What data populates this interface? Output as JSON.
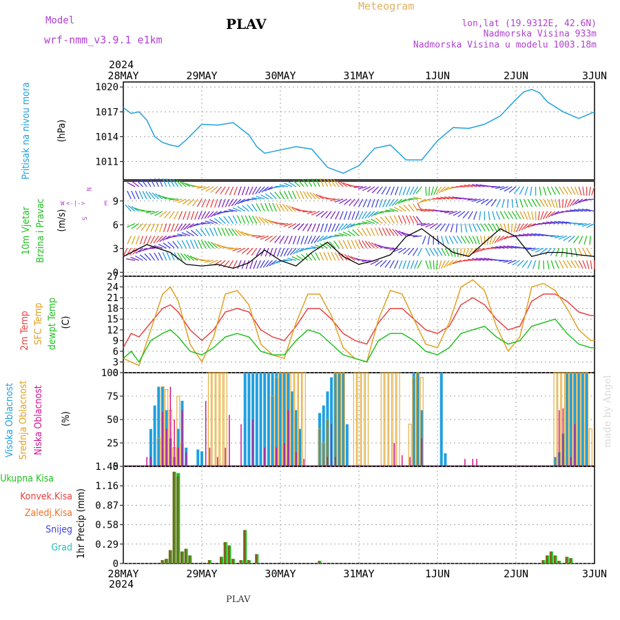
{
  "header": {
    "model_label": "Model",
    "model_value": "wrf-nmm_v3.9.1 e1km",
    "station": "PLAV",
    "title": "Meteogram",
    "lonlat": "lon,lat (19.9312E, 42.6N)",
    "altitude": "Nadmorska Visina 933m",
    "model_altitude": "Nadmorska Visina u modelu 1003.18m",
    "footer_station": "PLAV",
    "credit": "made by Angel",
    "year_label": "2024"
  },
  "colors": {
    "pressure": "#1fa0e0",
    "wind_label": "#20c020",
    "temp2m": "#e84040",
    "sfc": "#e0a020",
    "dewpt": "#20c020",
    "high_cloud": "#1fa0e0",
    "mid_cloud": "#e0a020",
    "low_cloud": "#d01090",
    "ukupna": "#20c020",
    "konvek": "#e84040",
    "zaledj": "#f07020",
    "snijeg": "#4040e0",
    "grad": "#20c0c0",
    "purple": "#b040d0",
    "grid": "#a0a0a0"
  },
  "x_axis": {
    "ticks": [
      "28MAY",
      "29MAY",
      "30MAY",
      "31MAY",
      "1JUN",
      "2JUN",
      "3JUN"
    ]
  },
  "chart_data": [
    {
      "type": "line",
      "panel": "pressure",
      "ylabel_parts": [
        "Pritisak na nivou mora",
        "(hPa)"
      ],
      "yticks": [
        1011,
        1014,
        1017,
        1020
      ],
      "ylim": [
        1008.8,
        1020.6
      ],
      "grid": true,
      "series": [
        {
          "name": "Pritisak na nivou mora",
          "x": [
            0,
            0.1,
            0.2,
            0.3,
            0.4,
            0.5,
            0.6,
            0.7,
            0.8,
            1.0,
            1.2,
            1.4,
            1.6,
            1.7,
            1.8,
            2.0,
            2.2,
            2.4,
            2.6,
            2.8,
            3.0,
            3.2,
            3.4,
            3.6,
            3.8,
            4.0,
            4.2,
            4.4,
            4.6,
            4.8,
            5.0,
            5.1,
            5.2,
            5.3,
            5.4,
            5.6,
            5.8,
            6.0
          ],
          "values": [
            1017.5,
            1016.8,
            1017.0,
            1016.0,
            1014.0,
            1013.3,
            1013.0,
            1012.8,
            1013.6,
            1015.5,
            1015.4,
            1015.7,
            1014.2,
            1012.8,
            1012.0,
            1012.4,
            1012.8,
            1012.5,
            1010.3,
            1009.6,
            1010.5,
            1012.6,
            1013.0,
            1011.2,
            1011.2,
            1013.5,
            1015.1,
            1015.0,
            1015.5,
            1016.5,
            1018.5,
            1019.4,
            1019.7,
            1019.3,
            1018.2,
            1017.0,
            1016.2,
            1017.0
          ]
        }
      ]
    },
    {
      "type": "line",
      "panel": "wind",
      "ylabel_parts": [
        "10m Vjetar",
        "Brzina i Pravac",
        "(m/s)"
      ],
      "compass": {
        "n": "N",
        "s": "S",
        "w": "W",
        "e": "E",
        "arrow": "<-|->"
      },
      "yticks": [
        0,
        3,
        6,
        9
      ],
      "ylim": [
        -0.5,
        11.5
      ],
      "grid": true,
      "series": [
        {
          "name": "brzina",
          "x": [
            0,
            0.3,
            0.6,
            0.8,
            1.0,
            1.2,
            1.4,
            1.6,
            1.8,
            2.0,
            2.2,
            2.4,
            2.6,
            2.8,
            3.0,
            3.2,
            3.4,
            3.6,
            3.8,
            4.0,
            4.2,
            4.4,
            4.6,
            4.8,
            5.0,
            5.2,
            5.4,
            5.6,
            5.8,
            6.0
          ],
          "values": [
            2.0,
            3.5,
            2.5,
            1.0,
            0.8,
            1.0,
            0.5,
            1.2,
            2.8,
            1.5,
            0.8,
            2.5,
            3.8,
            2.0,
            1.0,
            1.5,
            2.2,
            4.5,
            5.5,
            4.0,
            2.5,
            2.0,
            3.8,
            5.5,
            4.5,
            2.0,
            2.5,
            2.5,
            2.2,
            2.0
          ]
        }
      ]
    },
    {
      "type": "line",
      "panel": "temperature",
      "ylabel_parts": [
        "2m Temp",
        "SFC Temp",
        "dewpt Temp",
        "(C)"
      ],
      "yticks": [
        0,
        3,
        6,
        9,
        12,
        15,
        18,
        21,
        24,
        27
      ],
      "ylim": [
        0,
        27
      ],
      "grid": true,
      "series": [
        {
          "name": "2m Temp",
          "x": [
            0,
            0.1,
            0.2,
            0.35,
            0.5,
            0.6,
            0.7,
            0.85,
            1.0,
            1.15,
            1.3,
            1.45,
            1.6,
            1.75,
            1.9,
            2.05,
            2.2,
            2.35,
            2.5,
            2.65,
            2.8,
            2.95,
            3.1,
            3.25,
            3.4,
            3.55,
            3.7,
            3.85,
            4.0,
            4.15,
            4.3,
            4.45,
            4.6,
            4.75,
            4.9,
            5.05,
            5.2,
            5.35,
            5.5,
            5.65,
            5.8,
            5.95,
            6.0
          ],
          "values": [
            7,
            11,
            10,
            14,
            18,
            19,
            17,
            12,
            9,
            12,
            17,
            18,
            17,
            12,
            10,
            9,
            13,
            18,
            18,
            15,
            11,
            9,
            8,
            14,
            18,
            18,
            15,
            12,
            11,
            13,
            19,
            21,
            19,
            15,
            12,
            13,
            20,
            22,
            22,
            20,
            17,
            16,
            16
          ]
        },
        {
          "name": "SFC Temp",
          "x": [
            0,
            0.1,
            0.2,
            0.35,
            0.5,
            0.6,
            0.7,
            0.85,
            1.0,
            1.15,
            1.3,
            1.45,
            1.6,
            1.75,
            1.9,
            2.05,
            2.2,
            2.35,
            2.5,
            2.65,
            2.8,
            2.95,
            3.1,
            3.25,
            3.4,
            3.55,
            3.7,
            3.85,
            4.0,
            4.15,
            4.3,
            4.45,
            4.6,
            4.75,
            4.9,
            5.05,
            5.2,
            5.35,
            5.5,
            5.65,
            5.8,
            5.95,
            6.0
          ],
          "values": [
            4,
            3,
            2,
            12,
            22,
            24,
            20,
            8,
            3,
            10,
            22,
            23,
            19,
            8,
            5,
            4,
            14,
            22,
            22,
            16,
            7,
            4,
            3,
            15,
            23,
            22,
            15,
            8,
            7,
            14,
            24,
            26,
            23,
            13,
            6,
            10,
            24,
            25,
            23,
            18,
            12,
            9,
            9
          ]
        },
        {
          "name": "dewpt Temp",
          "x": [
            0,
            0.1,
            0.2,
            0.35,
            0.5,
            0.6,
            0.7,
            0.85,
            1.0,
            1.15,
            1.3,
            1.45,
            1.6,
            1.75,
            1.9,
            2.05,
            2.2,
            2.35,
            2.5,
            2.65,
            2.8,
            2.95,
            3.1,
            3.25,
            3.4,
            3.55,
            3.7,
            3.85,
            4.0,
            4.15,
            4.3,
            4.45,
            4.6,
            4.75,
            4.9,
            5.05,
            5.2,
            5.35,
            5.5,
            5.65,
            5.8,
            5.95,
            6.0
          ],
          "values": [
            4,
            6,
            3,
            9,
            11,
            12,
            10,
            6,
            5,
            7,
            10,
            11,
            10,
            6,
            5,
            5,
            9,
            12,
            11,
            8,
            5,
            4,
            3,
            9,
            11,
            11,
            9,
            6,
            5,
            7,
            11,
            12,
            13,
            10,
            8,
            9,
            13,
            14,
            15,
            11,
            8,
            7,
            7
          ]
        }
      ]
    },
    {
      "type": "bar",
      "panel": "clouds",
      "ylabel_parts": [
        "Visoka Oblacnost",
        "Srednja Oblacnost",
        "Niska Oblacnost",
        "(%)"
      ],
      "yticks": [
        0,
        25,
        50,
        75,
        100
      ],
      "ylim": [
        0,
        100
      ],
      "grid": true,
      "series": [
        {
          "name": "Visoka Oblacnost",
          "x": [
            0.35,
            0.4,
            0.45,
            0.5,
            0.55,
            0.6,
            0.65,
            0.7,
            0.75,
            0.8,
            0.95,
            1.0,
            1.55,
            1.6,
            1.65,
            1.7,
            1.75,
            1.8,
            1.85,
            1.9,
            1.95,
            2.0,
            2.05,
            2.1,
            2.15,
            2.2,
            2.25,
            2.5,
            2.55,
            2.6,
            2.65,
            2.7,
            2.75,
            2.8,
            2.85,
            3.7,
            3.75,
            3.8,
            4.05,
            4.1,
            5.5,
            5.55,
            5.6,
            5.65,
            5.7,
            5.75,
            5.8,
            5.85,
            5.9
          ],
          "values": [
            40,
            65,
            85,
            85,
            60,
            30,
            10,
            40,
            70,
            20,
            18,
            16,
            100,
            100,
            100,
            100,
            100,
            100,
            100,
            100,
            100,
            100,
            100,
            100,
            80,
            60,
            40,
            57,
            65,
            80,
            95,
            100,
            100,
            100,
            45,
            100,
            100,
            60,
            100,
            14,
            10,
            15,
            35,
            100,
            100,
            100,
            100,
            100,
            100
          ]
        },
        {
          "name": "Srednja Oblacnost",
          "x": [
            0.45,
            0.5,
            0.55,
            0.6,
            0.65,
            0.7,
            0.75,
            1.1,
            1.15,
            1.2,
            1.25,
            1.3,
            1.9,
            1.95,
            2.0,
            2.05,
            2.1,
            2.15,
            2.2,
            2.25,
            2.3,
            2.5,
            2.55,
            2.6,
            2.7,
            2.75,
            2.8,
            2.95,
            3.0,
            3.05,
            3.1,
            3.3,
            3.35,
            3.4,
            3.45,
            3.5,
            3.65,
            3.7,
            3.75,
            3.8,
            5.5,
            5.55,
            5.6,
            5.65,
            5.7,
            5.75,
            5.8,
            5.85,
            5.9,
            5.95
          ],
          "values": [
            30,
            85,
            82,
            60,
            20,
            75,
            25,
            100,
            100,
            100,
            100,
            100,
            75,
            95,
            100,
            100,
            100,
            100,
            100,
            100,
            100,
            40,
            25,
            50,
            100,
            100,
            100,
            100,
            100,
            100,
            100,
            100,
            100,
            100,
            100,
            100,
            45,
            95,
            100,
            95,
            100,
            100,
            100,
            100,
            100,
            100,
            100,
            100,
            100,
            40
          ]
        },
        {
          "name": "Niska Oblacnost",
          "x": [
            0.3,
            0.35,
            0.5,
            0.55,
            0.6,
            0.65,
            0.7,
            0.75,
            0.8,
            1.05,
            1.1,
            1.2,
            1.3,
            1.35,
            1.5,
            1.65,
            1.8,
            1.95,
            2.05,
            2.1,
            2.2,
            2.3,
            2.6,
            2.65,
            2.7,
            3.45,
            3.55,
            3.65,
            3.8,
            4.35,
            4.45,
            4.5,
            5.55,
            5.6,
            5.7,
            5.75
          ],
          "values": [
            10,
            10,
            58,
            40,
            85,
            50,
            20,
            60,
            15,
            70,
            20,
            10,
            20,
            55,
            45,
            50,
            20,
            20,
            25,
            60,
            15,
            8,
            10,
            45,
            10,
            25,
            12,
            10,
            30,
            8,
            8,
            8,
            60,
            62,
            10,
            45
          ]
        }
      ]
    },
    {
      "type": "bar",
      "panel": "precipitation",
      "ylabel_parts": [
        "1hr Precip (mm)"
      ],
      "legend": [
        "Ukupna Kisa",
        "Konvek.Kisa",
        "Zaledj.Kisa",
        "Snijeg",
        "Grad"
      ],
      "yticks": [
        0,
        0.29,
        0.58,
        0.87,
        1.16,
        1.45
      ],
      "ylim": [
        0,
        1.45
      ],
      "grid": true,
      "series": [
        {
          "name": "Ukupna Kisa",
          "x": [
            0.5,
            0.55,
            0.6,
            0.65,
            0.7,
            0.75,
            0.8,
            0.85,
            1.1,
            1.25,
            1.3,
            1.35,
            1.4,
            1.5,
            1.55,
            1.6,
            1.7,
            2.5,
            5.35,
            5.4,
            5.45,
            5.5,
            5.55,
            5.65,
            5.7
          ],
          "values": [
            0.05,
            0.07,
            0.2,
            1.37,
            1.35,
            0.18,
            0.22,
            0.12,
            0.05,
            0.1,
            0.32,
            0.27,
            0.07,
            0.05,
            0.5,
            0.05,
            0.14,
            0.04,
            0.05,
            0.12,
            0.18,
            0.12,
            0.04,
            0.1,
            0.08
          ]
        },
        {
          "name": "Konvek.Kisa",
          "x": [
            0.5,
            0.55,
            0.6,
            0.65,
            0.7,
            0.75,
            0.8,
            0.85,
            1.1,
            1.25,
            1.3,
            1.35,
            1.4,
            1.5,
            1.55,
            1.6,
            1.7,
            2.5,
            5.35,
            5.4,
            5.45,
            5.5,
            5.55,
            5.65,
            5.7
          ],
          "values": [
            0.05,
            0.07,
            0.2,
            1.37,
            1.3,
            0.18,
            0.22,
            0.12,
            0.05,
            0.1,
            0.32,
            0.27,
            0.07,
            0.05,
            0.5,
            0.05,
            0.14,
            0.04,
            0.05,
            0.12,
            0.18,
            0.12,
            0.04,
            0.1,
            0.08
          ]
        }
      ]
    }
  ]
}
